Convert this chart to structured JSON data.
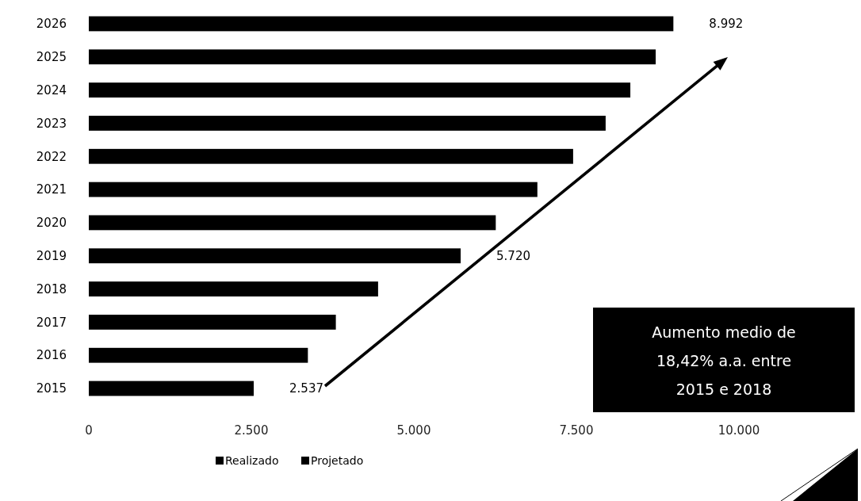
{
  "chart_data": {
    "type": "bar",
    "orientation": "horizontal",
    "stacked": true,
    "categories": [
      "2026",
      "2025",
      "2024",
      "2023",
      "2022",
      "2021",
      "2020",
      "2019",
      "2018",
      "2017",
      "2016",
      "2015"
    ],
    "series": [
      {
        "name": "Realizado",
        "color": "#000000",
        "values": [
          null,
          null,
          null,
          null,
          null,
          null,
          null,
          null,
          4450,
          3800,
          3370,
          2537
        ],
        "value_labels": [
          null,
          null,
          null,
          null,
          null,
          null,
          null,
          null,
          null,
          null,
          null,
          "2.537"
        ]
      },
      {
        "name": "Projetado",
        "color": "#000000",
        "values": [
          8992,
          8720,
          8330,
          7950,
          7450,
          6900,
          6260,
          5720,
          null,
          null,
          null,
          null
        ],
        "value_labels": [
          "8.992",
          null,
          null,
          null,
          null,
          null,
          null,
          "5.720",
          null,
          null,
          null,
          null
        ]
      }
    ],
    "xlim": [
      0,
      10000
    ],
    "xticks": [
      0,
      {
        "value": 2500,
        "label": "2.500"
      },
      {
        "value": 5000,
        "label": "5.000"
      },
      {
        "value": 7500,
        "label": "7.500"
      },
      {
        "value": 10000,
        "label": "10.000"
      }
    ],
    "legend": "bottom",
    "annotations": [
      "Aumento medio de 18,42% a.a. entre 2015 e 2018"
    ]
  }
}
